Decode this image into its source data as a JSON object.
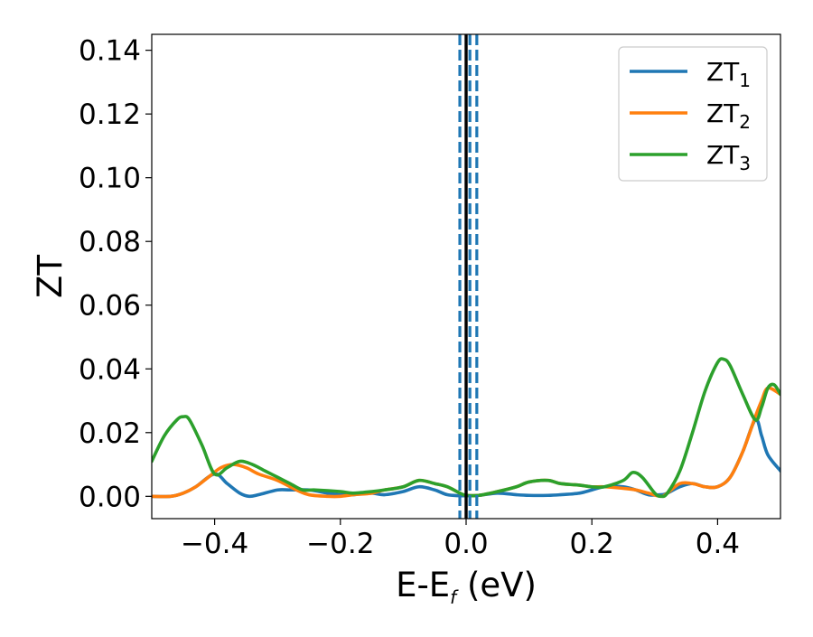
{
  "chart_data": {
    "type": "line",
    "title": "",
    "xlabel": {
      "main": "E-E",
      "sub": "f",
      "tail": " (eV)"
    },
    "ylabel": "ZT",
    "xlim": [
      -0.5,
      0.5
    ],
    "ylim": [
      -0.007,
      0.145
    ],
    "x_ticks": [
      -0.4,
      -0.2,
      0.0,
      0.2,
      0.4
    ],
    "x_tick_labels": [
      "−0.4",
      "−0.2",
      "0.0",
      "0.2",
      "0.4"
    ],
    "y_ticks": [
      0.0,
      0.02,
      0.04,
      0.06,
      0.08,
      0.1,
      0.12,
      0.14
    ],
    "y_tick_labels": [
      "0.00",
      "0.02",
      "0.04",
      "0.06",
      "0.08",
      "0.10",
      "0.12",
      "0.14"
    ],
    "grid": false,
    "legend_position": "top-right",
    "vertical_lines": [
      {
        "x": 0.0,
        "style": "solid",
        "color": "#000000"
      },
      {
        "x": -0.01,
        "style": "dashed",
        "color": "#1f77b4"
      },
      {
        "x": 0.006,
        "style": "dashed",
        "color": "#1f77b4"
      },
      {
        "x": 0.017,
        "style": "dashed",
        "color": "#1f77b4"
      }
    ],
    "series": [
      {
        "name": "ZT",
        "sub": "1",
        "color": "#1f77b4",
        "x": [
          -0.5,
          -0.47,
          -0.45,
          -0.43,
          -0.4,
          -0.38,
          -0.36,
          -0.345,
          -0.33,
          -0.3,
          -0.28,
          -0.25,
          -0.22,
          -0.2,
          -0.18,
          -0.15,
          -0.13,
          -0.1,
          -0.075,
          -0.05,
          -0.03,
          -0.01,
          0.0,
          0.02,
          0.05,
          0.08,
          0.1,
          0.13,
          0.15,
          0.18,
          0.2,
          0.22,
          0.25,
          0.27,
          0.29,
          0.31,
          0.32,
          0.34,
          0.36,
          0.38,
          0.4,
          0.42,
          0.44,
          0.46,
          0.47,
          0.48,
          0.5
        ],
        "y": [
          0.0,
          0.0,
          0.001,
          0.003,
          0.007,
          0.004,
          0.001,
          0.0,
          0.0005,
          0.002,
          0.002,
          0.002,
          0.001,
          0.0005,
          0.0005,
          0.001,
          0.0005,
          0.0015,
          0.003,
          0.002,
          0.0005,
          0.0002,
          0.0002,
          0.0003,
          0.001,
          0.0005,
          0.0003,
          0.0003,
          0.0005,
          0.001,
          0.002,
          0.003,
          0.003,
          0.002,
          0.0005,
          0.0005,
          0.001,
          0.003,
          0.004,
          0.003,
          0.003,
          0.006,
          0.014,
          0.024,
          0.019,
          0.013,
          0.008
        ]
      },
      {
        "name": "ZT",
        "sub": "2",
        "color": "#ff7f0e",
        "x": [
          -0.5,
          -0.47,
          -0.45,
          -0.43,
          -0.41,
          -0.39,
          -0.37,
          -0.35,
          -0.33,
          -0.3,
          -0.27,
          -0.25,
          -0.22,
          -0.2,
          -0.18,
          -0.15,
          -0.13,
          -0.1,
          -0.075,
          -0.05,
          -0.03,
          -0.01,
          0.0,
          0.02,
          0.05,
          0.08,
          0.1,
          0.13,
          0.15,
          0.18,
          0.2,
          0.22,
          0.25,
          0.27,
          0.29,
          0.31,
          0.32,
          0.34,
          0.36,
          0.38,
          0.4,
          0.42,
          0.44,
          0.46,
          0.47,
          0.48,
          0.5
        ],
        "y": [
          0.0,
          0.0,
          0.001,
          0.003,
          0.006,
          0.009,
          0.01,
          0.009,
          0.007,
          0.005,
          0.002,
          0.0005,
          0.0,
          0.0,
          0.0005,
          0.001,
          0.002,
          0.003,
          0.005,
          0.004,
          0.003,
          0.001,
          0.0003,
          0.0003,
          0.0015,
          0.003,
          0.0045,
          0.005,
          0.004,
          0.0035,
          0.003,
          0.003,
          0.0025,
          0.002,
          0.001,
          0.0,
          0.001,
          0.004,
          0.004,
          0.003,
          0.003,
          0.006,
          0.014,
          0.025,
          0.03,
          0.034,
          0.032
        ]
      },
      {
        "name": "ZT",
        "sub": "3",
        "color": "#2ca02c",
        "x": [
          -0.5,
          -0.48,
          -0.46,
          -0.45,
          -0.44,
          -0.42,
          -0.4,
          -0.38,
          -0.36,
          -0.34,
          -0.32,
          -0.3,
          -0.28,
          -0.26,
          -0.24,
          -0.2,
          -0.18,
          -0.15,
          -0.13,
          -0.1,
          -0.075,
          -0.05,
          -0.03,
          -0.01,
          0.0,
          0.02,
          0.05,
          0.08,
          0.1,
          0.13,
          0.15,
          0.18,
          0.2,
          0.22,
          0.25,
          0.265,
          0.28,
          0.3,
          0.31,
          0.32,
          0.34,
          0.36,
          0.38,
          0.4,
          0.41,
          0.42,
          0.44,
          0.46,
          0.47,
          0.48,
          0.49,
          0.5
        ],
        "y": [
          0.011,
          0.019,
          0.024,
          0.025,
          0.024,
          0.016,
          0.007,
          0.009,
          0.011,
          0.01,
          0.008,
          0.006,
          0.004,
          0.002,
          0.002,
          0.0015,
          0.001,
          0.0015,
          0.002,
          0.003,
          0.005,
          0.004,
          0.003,
          0.001,
          0.0003,
          0.0003,
          0.0015,
          0.003,
          0.0045,
          0.005,
          0.004,
          0.0035,
          0.003,
          0.003,
          0.005,
          0.0075,
          0.006,
          0.001,
          0.0,
          0.001,
          0.008,
          0.02,
          0.033,
          0.042,
          0.043,
          0.041,
          0.032,
          0.024,
          0.028,
          0.034,
          0.035,
          0.032
        ]
      }
    ]
  }
}
